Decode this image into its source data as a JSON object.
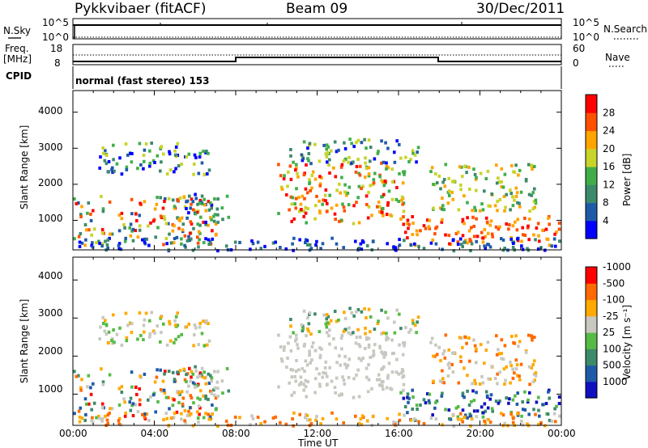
{
  "header": {
    "radar": "Pykkvibaer (fitACF)",
    "beam": "Beam 09",
    "date": "30/Dec/2011"
  },
  "panels": {
    "nsky_label": "N.Sky",
    "nsky_ticks": [
      "10^5",
      "10^0"
    ],
    "nsearch_label": "N.Search",
    "nsearch_ticks": [
      "10^5",
      "10^0"
    ],
    "freq_label": "Freq.",
    "freq_unit": "[MHz]",
    "freq_ticks": [
      "18",
      "8"
    ],
    "nave_label": "Nave",
    "nave_ticks": [
      "60",
      "0"
    ],
    "cpid_label": "CPID",
    "cpid_text": "normal (fast stereo) 153"
  },
  "chart_data": [
    {
      "type": "heatmap",
      "name": "power",
      "ylabel": "Slant Range [km]",
      "yticks": [
        "1000",
        "2000",
        "3000",
        "4000"
      ],
      "ylim": [
        180,
        4600
      ],
      "xticks": [
        "00:00",
        "04:00",
        "08:00",
        "12:00",
        "16:00",
        "20:00",
        "00:00"
      ],
      "xlim_hours": [
        0,
        24
      ],
      "colorbar": {
        "label": "Power [dB]",
        "ticks": [
          "4",
          "8",
          "12",
          "16",
          "20",
          "24",
          "28"
        ],
        "colors": [
          "#0000ff",
          "#1f5aa8",
          "#3c8a6a",
          "#3fae4a",
          "#c8d42a",
          "#ffa500",
          "#ff5000",
          "#ff0000"
        ]
      },
      "bands": [
        {
          "t0": 0.0,
          "t1": 7.0,
          "r0": 700,
          "r1": 1700,
          "level": "mid-high"
        },
        {
          "t0": 10.5,
          "t1": 16.2,
          "r0": 900,
          "r1": 2500,
          "level": "high"
        },
        {
          "t0": 16.2,
          "t1": 23.8,
          "r0": 300,
          "r1": 1100,
          "level": "high"
        }
      ]
    },
    {
      "type": "heatmap",
      "name": "velocity",
      "ylabel": "Slant Range [km]",
      "yticks": [
        "1000",
        "2000",
        "3000",
        "4000"
      ],
      "ylim": [
        180,
        4600
      ],
      "xticks": [
        "00:00",
        "04:00",
        "08:00",
        "12:00",
        "16:00",
        "20:00",
        "00:00"
      ],
      "xlabel": "Time UT",
      "xlim_hours": [
        0,
        24
      ],
      "colorbar": {
        "label": "Velocity [m s⁻¹]",
        "ticks": [
          "1000",
          "500",
          "100",
          "25",
          "-25",
          "-100",
          "-500",
          "-1000"
        ],
        "colors": [
          "#1010c0",
          "#1f5aa8",
          "#3c8a6a",
          "#55bb44",
          "#c8c8c0",
          "#ffaa00",
          "#ff6a00",
          "#ff0000"
        ]
      }
    }
  ],
  "xaxis": {
    "label": "Time UT"
  }
}
